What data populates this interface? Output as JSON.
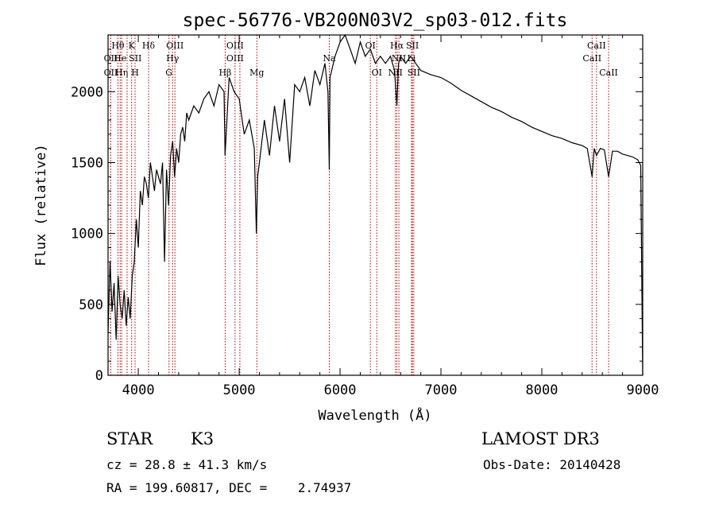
{
  "chart_data": {
    "type": "line",
    "title": "spec-56776-VB200N03V2_sp03-012.fits",
    "xlabel": "Wavelength (Å)",
    "ylabel": "Flux (relative)",
    "xlim": [
      3700,
      9000
    ],
    "ylim": [
      0,
      2400
    ],
    "xticks": [
      4000,
      5000,
      6000,
      7000,
      8000,
      9000
    ],
    "yticks": [
      0,
      500,
      1000,
      1500,
      2000
    ],
    "grid": false,
    "legend": "none",
    "line_color": "#000000",
    "marker_color": "#aa0000",
    "series": [
      {
        "x": [
          3700,
          3720,
          3740,
          3760,
          3780,
          3800,
          3820,
          3840,
          3860,
          3880,
          3900,
          3920,
          3940,
          3960,
          3980,
          4000,
          4020,
          4040,
          4060,
          4080,
          4100,
          4120,
          4140,
          4160,
          4180,
          4200,
          4220,
          4240,
          4260,
          4280,
          4300,
          4320,
          4340,
          4360,
          4380,
          4400,
          4420,
          4440,
          4460,
          4480,
          4500,
          4550,
          4600,
          4650,
          4700,
          4750,
          4800,
          4850,
          4860,
          4900,
          4950,
          5000,
          5050,
          5100,
          5150,
          5170,
          5183,
          5200,
          5250,
          5300,
          5350,
          5400,
          5450,
          5500,
          5550,
          5600,
          5650,
          5700,
          5750,
          5800,
          5850,
          5880,
          5893,
          5900,
          5950,
          6000,
          6050,
          6100,
          6150,
          6200,
          6250,
          6300,
          6350,
          6400,
          6450,
          6500,
          6540,
          6563,
          6580,
          6600,
          6650,
          6700,
          6750,
          6800,
          6900,
          7000,
          7100,
          7200,
          7300,
          7400,
          7500,
          7600,
          7700,
          7800,
          7900,
          8000,
          8100,
          8200,
          8300,
          8400,
          8450,
          8498,
          8520,
          8542,
          8580,
          8620,
          8662,
          8700,
          8750,
          8800,
          8850,
          8900,
          8950,
          8980,
          9000
        ],
        "y": [
          300,
          800,
          450,
          650,
          250,
          700,
          500,
          400,
          600,
          350,
          550,
          400,
          700,
          800,
          1100,
          900,
          1300,
          1200,
          1400,
          1350,
          1250,
          1500,
          1400,
          1300,
          1450,
          1400,
          1350,
          1500,
          800,
          1450,
          1200,
          1550,
          1650,
          1400,
          1600,
          1500,
          1700,
          1750,
          1650,
          1850,
          1800,
          1900,
          1850,
          1950,
          2000,
          1900,
          2050,
          2000,
          1550,
          2100,
          2000,
          1950,
          1700,
          1800,
          1600,
          1000,
          1400,
          1500,
          1800,
          1550,
          1900,
          1650,
          1950,
          1500,
          2050,
          2000,
          2100,
          1900,
          2150,
          2050,
          2200,
          2000,
          1450,
          2100,
          2250,
          2350,
          2400,
          2300,
          2200,
          2350,
          2250,
          2300,
          2200,
          2250,
          2200,
          2250,
          2150,
          1900,
          2200,
          2250,
          2200,
          2250,
          2200,
          2150,
          2120,
          2100,
          2060,
          2010,
          1970,
          1930,
          1890,
          1860,
          1820,
          1790,
          1750,
          1720,
          1690,
          1670,
          1640,
          1620,
          1600,
          1400,
          1600,
          1550,
          1600,
          1590,
          1400,
          1580,
          1580,
          1560,
          1550,
          1540,
          1520,
          1480,
          0
        ]
      }
    ],
    "annotations": [
      {
        "label": "Hθ",
        "x": 3798,
        "row": 1
      },
      {
        "label": "OII",
        "x": 3727,
        "row": 2
      },
      {
        "label": "OII",
        "x": 3727,
        "row": 3
      },
      {
        "label": "He",
        "x": 3820,
        "row": 2
      },
      {
        "label": "Hη",
        "x": 3835,
        "row": 3
      },
      {
        "label": "K",
        "x": 3934,
        "row": 1
      },
      {
        "label": "SII",
        "x": 3970,
        "row": 2
      },
      {
        "label": "H",
        "x": 3968,
        "row": 3
      },
      {
        "label": "Hδ",
        "x": 4102,
        "row": 1
      },
      {
        "label": "OIII",
        "x": 4363,
        "row": 1
      },
      {
        "label": "Hγ",
        "x": 4340,
        "row": 2
      },
      {
        "label": "G",
        "x": 4304,
        "row": 3
      },
      {
        "label": "OIII",
        "x": 4959,
        "row": 1
      },
      {
        "label": "OIII",
        "x": 4959,
        "row": 2
      },
      {
        "label": "Hβ",
        "x": 4861,
        "row": 3
      },
      {
        "label": "Mg",
        "x": 5175,
        "row": 3
      },
      {
        "label": "Na",
        "x": 5893,
        "row": 2
      },
      {
        "label": "OI",
        "x": 6300,
        "row": 1
      },
      {
        "label": "OI",
        "x": 6364,
        "row": 3
      },
      {
        "label": "Hα",
        "x": 6563,
        "row": 1
      },
      {
        "label": "SII",
        "x": 6717,
        "row": 1
      },
      {
        "label": "NII",
        "x": 6583,
        "row": 2
      },
      {
        "label": "Li",
        "x": 6708,
        "row": 2
      },
      {
        "label": "NII",
        "x": 6548,
        "row": 3
      },
      {
        "label": "SII",
        "x": 6731,
        "row": 3
      },
      {
        "label": "CaII",
        "x": 8542,
        "row": 1
      },
      {
        "label": "CaII",
        "x": 8498,
        "row": 2
      },
      {
        "label": "CaII",
        "x": 8662,
        "row": 3
      }
    ],
    "marker_lines": [
      3727,
      3798,
      3820,
      3835,
      3889,
      3934,
      3968,
      4102,
      4304,
      4340,
      4363,
      4861,
      4959,
      5007,
      5175,
      5893,
      6300,
      6364,
      6548,
      6563,
      6583,
      6708,
      6717,
      6731,
      8498,
      8542,
      8662
    ]
  },
  "info": {
    "class_label": "STAR",
    "subclass": "K3",
    "survey": "LAMOST DR3",
    "cz": "cz = 28.8 ± 41.3 km/s",
    "obs_date": "Obs-Date: 20140428",
    "radec": "RA = 199.60817, DEC =    2.74937"
  }
}
